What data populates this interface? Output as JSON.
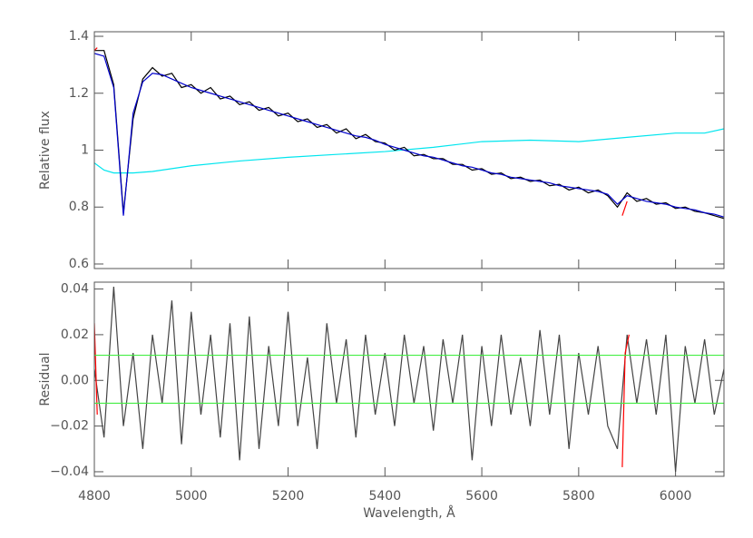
{
  "chart_data": [
    {
      "type": "line",
      "ylabel": "Relative flux",
      "show_xtick_labels": false,
      "xlim": [
        4800,
        6100
      ],
      "xticks": [
        4800,
        5000,
        5200,
        5400,
        5600,
        5800,
        6000
      ],
      "ylim": [
        0.584,
        1.416
      ],
      "yticks": [
        0.6,
        0.8,
        1.0,
        1.2,
        1.4
      ],
      "x": [
        4800,
        4820,
        4840,
        4860,
        4880,
        4900,
        4920,
        4940,
        4960,
        4980,
        5000,
        5020,
        5040,
        5060,
        5080,
        5100,
        5120,
        5140,
        5160,
        5180,
        5200,
        5220,
        5240,
        5260,
        5280,
        5300,
        5320,
        5340,
        5360,
        5380,
        5400,
        5420,
        5440,
        5460,
        5480,
        5500,
        5520,
        5540,
        5560,
        5580,
        5600,
        5620,
        5640,
        5660,
        5680,
        5700,
        5720,
        5740,
        5760,
        5780,
        5800,
        5820,
        5840,
        5860,
        5880,
        5900,
        5920,
        5940,
        5960,
        5980,
        6000,
        6020,
        6040,
        6060,
        6080,
        6100
      ],
      "series": [
        {
          "color": "#00e5ee",
          "x": [
            4800,
            4820,
            4840,
            4880,
            4920,
            5000,
            5100,
            5200,
            5300,
            5400,
            5500,
            5600,
            5700,
            5800,
            5900,
            6000,
            6060,
            6100
          ],
          "values": [
            0.955,
            0.93,
            0.92,
            0.92,
            0.925,
            0.945,
            0.962,
            0.975,
            0.985,
            0.995,
            1.01,
            1.03,
            1.035,
            1.03,
            1.045,
            1.06,
            1.06,
            1.075
          ]
        },
        {
          "color": "#000000",
          "values": [
            1.35,
            1.35,
            1.23,
            0.78,
            1.11,
            1.25,
            1.29,
            1.26,
            1.27,
            1.22,
            1.23,
            1.2,
            1.22,
            1.18,
            1.19,
            1.16,
            1.17,
            1.14,
            1.15,
            1.12,
            1.13,
            1.1,
            1.11,
            1.08,
            1.09,
            1.06,
            1.075,
            1.04,
            1.055,
            1.03,
            1.025,
            1.0,
            1.01,
            0.98,
            0.985,
            0.97,
            0.97,
            0.95,
            0.95,
            0.93,
            0.935,
            0.915,
            0.92,
            0.9,
            0.905,
            0.89,
            0.895,
            0.875,
            0.88,
            0.86,
            0.87,
            0.85,
            0.86,
            0.84,
            0.8,
            0.85,
            0.82,
            0.83,
            0.81,
            0.815,
            0.795,
            0.8,
            0.785,
            0.78,
            0.77,
            0.76
          ]
        },
        {
          "color": "#0000cc",
          "values": [
            1.34,
            1.33,
            1.22,
            0.77,
            1.13,
            1.24,
            1.27,
            1.265,
            1.25,
            1.235,
            1.22,
            1.21,
            1.2,
            1.19,
            1.18,
            1.17,
            1.16,
            1.15,
            1.14,
            1.13,
            1.12,
            1.11,
            1.1,
            1.09,
            1.08,
            1.07,
            1.06,
            1.05,
            1.045,
            1.035,
            1.02,
            1.01,
            1.0,
            0.99,
            0.98,
            0.975,
            0.965,
            0.955,
            0.945,
            0.94,
            0.93,
            0.92,
            0.915,
            0.905,
            0.9,
            0.895,
            0.89,
            0.885,
            0.875,
            0.87,
            0.865,
            0.86,
            0.855,
            0.845,
            0.81,
            0.84,
            0.83,
            0.82,
            0.815,
            0.81,
            0.8,
            0.795,
            0.79,
            0.78,
            0.775,
            0.765
          ]
        },
        {
          "color": "#ff0000",
          "x": [
            4800,
            4806,
            5880,
            5890,
            5900
          ],
          "values": [
            1.35,
            1.36,
            null,
            0.77,
            0.82
          ]
        }
      ]
    },
    {
      "type": "line",
      "ylabel": "Residual",
      "xlabel": "Wavelength, Å",
      "show_xtick_labels": true,
      "xlim": [
        4800,
        6100
      ],
      "xticks": [
        4800,
        5000,
        5200,
        5400,
        5600,
        5800,
        6000
      ],
      "ylim": [
        -0.042,
        0.043
      ],
      "yticks": [
        {
          "value": -0.04,
          "label": "−0.04"
        },
        {
          "value": -0.02,
          "label": "−0.02"
        },
        {
          "value": 0,
          "label": "0.00"
        },
        {
          "value": 0.02,
          "label": "0.02"
        },
        {
          "value": 0.04,
          "label": "0.04"
        }
      ],
      "x": [
        4800,
        4820,
        4840,
        4860,
        4880,
        4900,
        4920,
        4940,
        4960,
        4980,
        5000,
        5020,
        5040,
        5060,
        5080,
        5100,
        5120,
        5140,
        5160,
        5180,
        5200,
        5220,
        5240,
        5260,
        5280,
        5300,
        5320,
        5340,
        5360,
        5380,
        5400,
        5420,
        5440,
        5460,
        5480,
        5500,
        5520,
        5540,
        5560,
        5580,
        5600,
        5620,
        5640,
        5660,
        5680,
        5700,
        5720,
        5740,
        5760,
        5780,
        5800,
        5820,
        5840,
        5860,
        5880,
        5900,
        5920,
        5940,
        5960,
        5980,
        6000,
        6020,
        6040,
        6060,
        6080,
        6100
      ],
      "series": [
        {
          "color": "#444444",
          "values": [
            0.005,
            -0.025,
            0.041,
            -0.02,
            0.012,
            -0.03,
            0.02,
            -0.01,
            0.035,
            -0.028,
            0.03,
            -0.015,
            0.02,
            -0.025,
            0.025,
            -0.035,
            0.028,
            -0.03,
            0.015,
            -0.02,
            0.03,
            -0.02,
            0.01,
            -0.03,
            0.025,
            -0.01,
            0.018,
            -0.025,
            0.02,
            -0.015,
            0.012,
            -0.02,
            0.02,
            -0.01,
            0.015,
            -0.022,
            0.018,
            -0.01,
            0.02,
            -0.035,
            0.015,
            -0.02,
            0.02,
            -0.015,
            0.01,
            -0.02,
            0.022,
            -0.015,
            0.02,
            -0.03,
            0.012,
            -0.015,
            0.015,
            -0.02,
            -0.03,
            0.02,
            -0.01,
            0.018,
            -0.015,
            0.02,
            -0.04,
            0.015,
            -0.01,
            0.018,
            -0.015,
            0.005
          ]
        },
        {
          "color": "#ff0000",
          "x": [
            4800,
            4806,
            5884,
            5890,
            5896,
            5904,
            6094,
            6100
          ],
          "values": [
            0.025,
            -0.015,
            null,
            -0.038,
            0.012,
            0.02,
            null,
            -0.01
          ]
        },
        {
          "color": "#44ee44",
          "x": [
            4800,
            6100
          ],
          "values": [
            0.011,
            0.011
          ]
        },
        {
          "color": "#44ee44",
          "x": [
            4800,
            6100
          ],
          "values": [
            -0.01,
            -0.01
          ]
        }
      ]
    }
  ]
}
